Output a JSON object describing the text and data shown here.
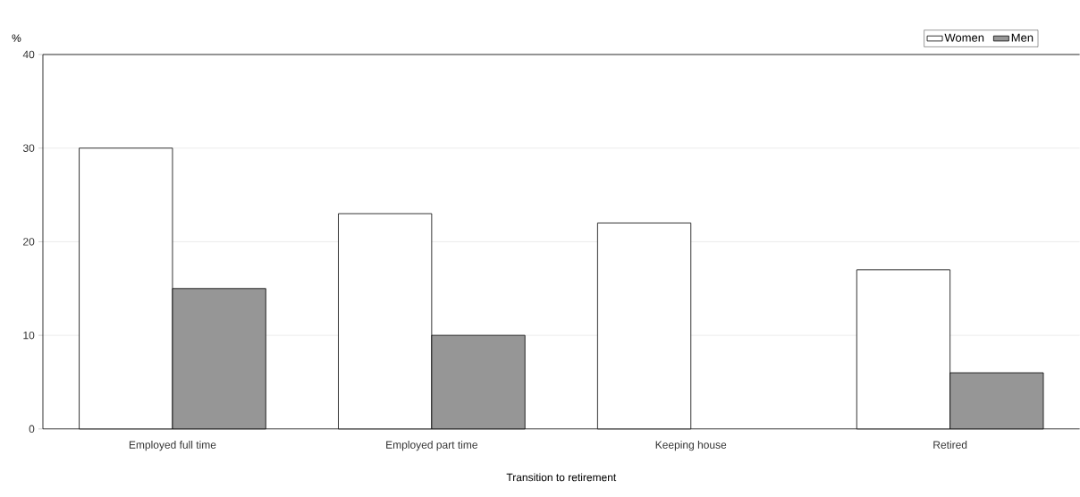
{
  "chart_data": {
    "type": "bar",
    "xlabel": "Transition to retirement",
    "ylabel": "%",
    "categories": [
      "Employed full time",
      "Employed part time",
      "Keeping house",
      "Retired"
    ],
    "series": [
      {
        "name": "Women",
        "color": "#ffffff",
        "values": [
          30,
          23,
          22,
          17
        ]
      },
      {
        "name": "Men",
        "color": "#969696",
        "values": [
          15,
          10,
          null,
          6
        ]
      }
    ],
    "ylim": [
      0,
      40
    ],
    "yticks": [
      0,
      10,
      20,
      30,
      40
    ],
    "grid": "y",
    "legend": "top right"
  }
}
